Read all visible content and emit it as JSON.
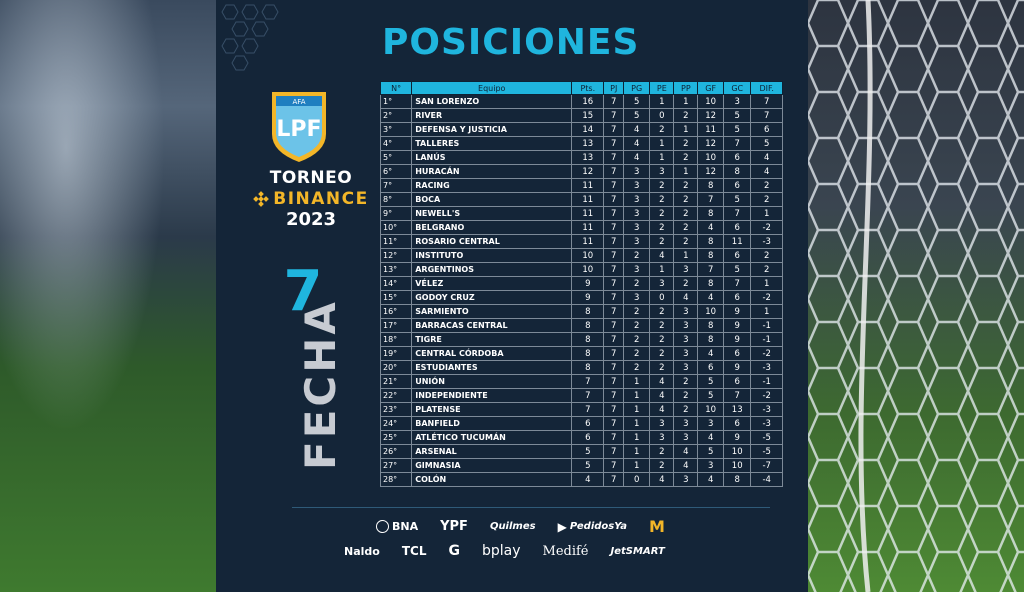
{
  "title": "POSICIONES",
  "tournament": {
    "league_logo_text": "LPF",
    "league_logo_small": "AFA",
    "name_line1": "TORNEO",
    "name_line2": "BINANCE",
    "year": "2023"
  },
  "fecha": {
    "number": "7",
    "label": "FECHA"
  },
  "table": {
    "headers": [
      "N°",
      "Equipo",
      "Pts.",
      "PJ",
      "PG",
      "PE",
      "PP",
      "GF",
      "GC",
      "DIF."
    ],
    "rows": [
      [
        "1°",
        "SAN LORENZO",
        "16",
        "7",
        "5",
        "1",
        "1",
        "10",
        "3",
        "7"
      ],
      [
        "2°",
        "RIVER",
        "15",
        "7",
        "5",
        "0",
        "2",
        "12",
        "5",
        "7"
      ],
      [
        "3°",
        "DEFENSA Y JUSTICIA",
        "14",
        "7",
        "4",
        "2",
        "1",
        "11",
        "5",
        "6"
      ],
      [
        "4°",
        "TALLERES",
        "13",
        "7",
        "4",
        "1",
        "2",
        "12",
        "7",
        "5"
      ],
      [
        "5°",
        "LANÚS",
        "13",
        "7",
        "4",
        "1",
        "2",
        "10",
        "6",
        "4"
      ],
      [
        "6°",
        "HURACÁN",
        "12",
        "7",
        "3",
        "3",
        "1",
        "12",
        "8",
        "4"
      ],
      [
        "7°",
        "RACING",
        "11",
        "7",
        "3",
        "2",
        "2",
        "8",
        "6",
        "2"
      ],
      [
        "8°",
        "BOCA",
        "11",
        "7",
        "3",
        "2",
        "2",
        "7",
        "5",
        "2"
      ],
      [
        "9°",
        "NEWELL'S",
        "11",
        "7",
        "3",
        "2",
        "2",
        "8",
        "7",
        "1"
      ],
      [
        "10°",
        "BELGRANO",
        "11",
        "7",
        "3",
        "2",
        "2",
        "4",
        "6",
        "-2"
      ],
      [
        "11°",
        "ROSARIO CENTRAL",
        "11",
        "7",
        "3",
        "2",
        "2",
        "8",
        "11",
        "-3"
      ],
      [
        "12°",
        "INSTITUTO",
        "10",
        "7",
        "2",
        "4",
        "1",
        "8",
        "6",
        "2"
      ],
      [
        "13°",
        "ARGENTINOS",
        "10",
        "7",
        "3",
        "1",
        "3",
        "7",
        "5",
        "2"
      ],
      [
        "14°",
        "VÉLEZ",
        "9",
        "7",
        "2",
        "3",
        "2",
        "8",
        "7",
        "1"
      ],
      [
        "15°",
        "GODOY CRUZ",
        "9",
        "7",
        "3",
        "0",
        "4",
        "4",
        "6",
        "-2"
      ],
      [
        "16°",
        "SARMIENTO",
        "8",
        "7",
        "2",
        "2",
        "3",
        "10",
        "9",
        "1"
      ],
      [
        "17°",
        "BARRACAS CENTRAL",
        "8",
        "7",
        "2",
        "2",
        "3",
        "8",
        "9",
        "-1"
      ],
      [
        "18°",
        "TIGRE",
        "8",
        "7",
        "2",
        "2",
        "3",
        "8",
        "9",
        "-1"
      ],
      [
        "19°",
        "CENTRAL CÓRDOBA",
        "8",
        "7",
        "2",
        "2",
        "3",
        "4",
        "6",
        "-2"
      ],
      [
        "20°",
        "ESTUDIANTES",
        "8",
        "7",
        "2",
        "2",
        "3",
        "6",
        "9",
        "-3"
      ],
      [
        "21°",
        "UNIÓN",
        "7",
        "7",
        "1",
        "4",
        "2",
        "5",
        "6",
        "-1"
      ],
      [
        "22°",
        "INDEPENDIENTE",
        "7",
        "7",
        "1",
        "4",
        "2",
        "5",
        "7",
        "-2"
      ],
      [
        "23°",
        "PLATENSE",
        "7",
        "7",
        "1",
        "4",
        "2",
        "10",
        "13",
        "-3"
      ],
      [
        "24°",
        "BANFIELD",
        "6",
        "7",
        "1",
        "3",
        "3",
        "3",
        "6",
        "-3"
      ],
      [
        "25°",
        "ATLÉTICO TUCUMÁN",
        "6",
        "7",
        "1",
        "3",
        "3",
        "4",
        "9",
        "-5"
      ],
      [
        "26°",
        "ARSENAL",
        "5",
        "7",
        "1",
        "2",
        "4",
        "5",
        "10",
        "-5"
      ],
      [
        "27°",
        "GIMNASIA",
        "5",
        "7",
        "1",
        "2",
        "4",
        "3",
        "10",
        "-7"
      ],
      [
        "28°",
        "COLÓN",
        "4",
        "7",
        "0",
        "4",
        "3",
        "4",
        "8",
        "-4"
      ]
    ]
  },
  "sponsors": {
    "row1": [
      "BNA",
      "YPF",
      "Quilmes",
      "PedidosYa",
      "M"
    ],
    "row2": [
      "Naldo",
      "TCL",
      "G",
      "bplay",
      "Medifé",
      "JetSMART"
    ]
  },
  "colors": {
    "accent": "#1fb5de",
    "panel": "#142538",
    "gold": "#f3b628"
  }
}
